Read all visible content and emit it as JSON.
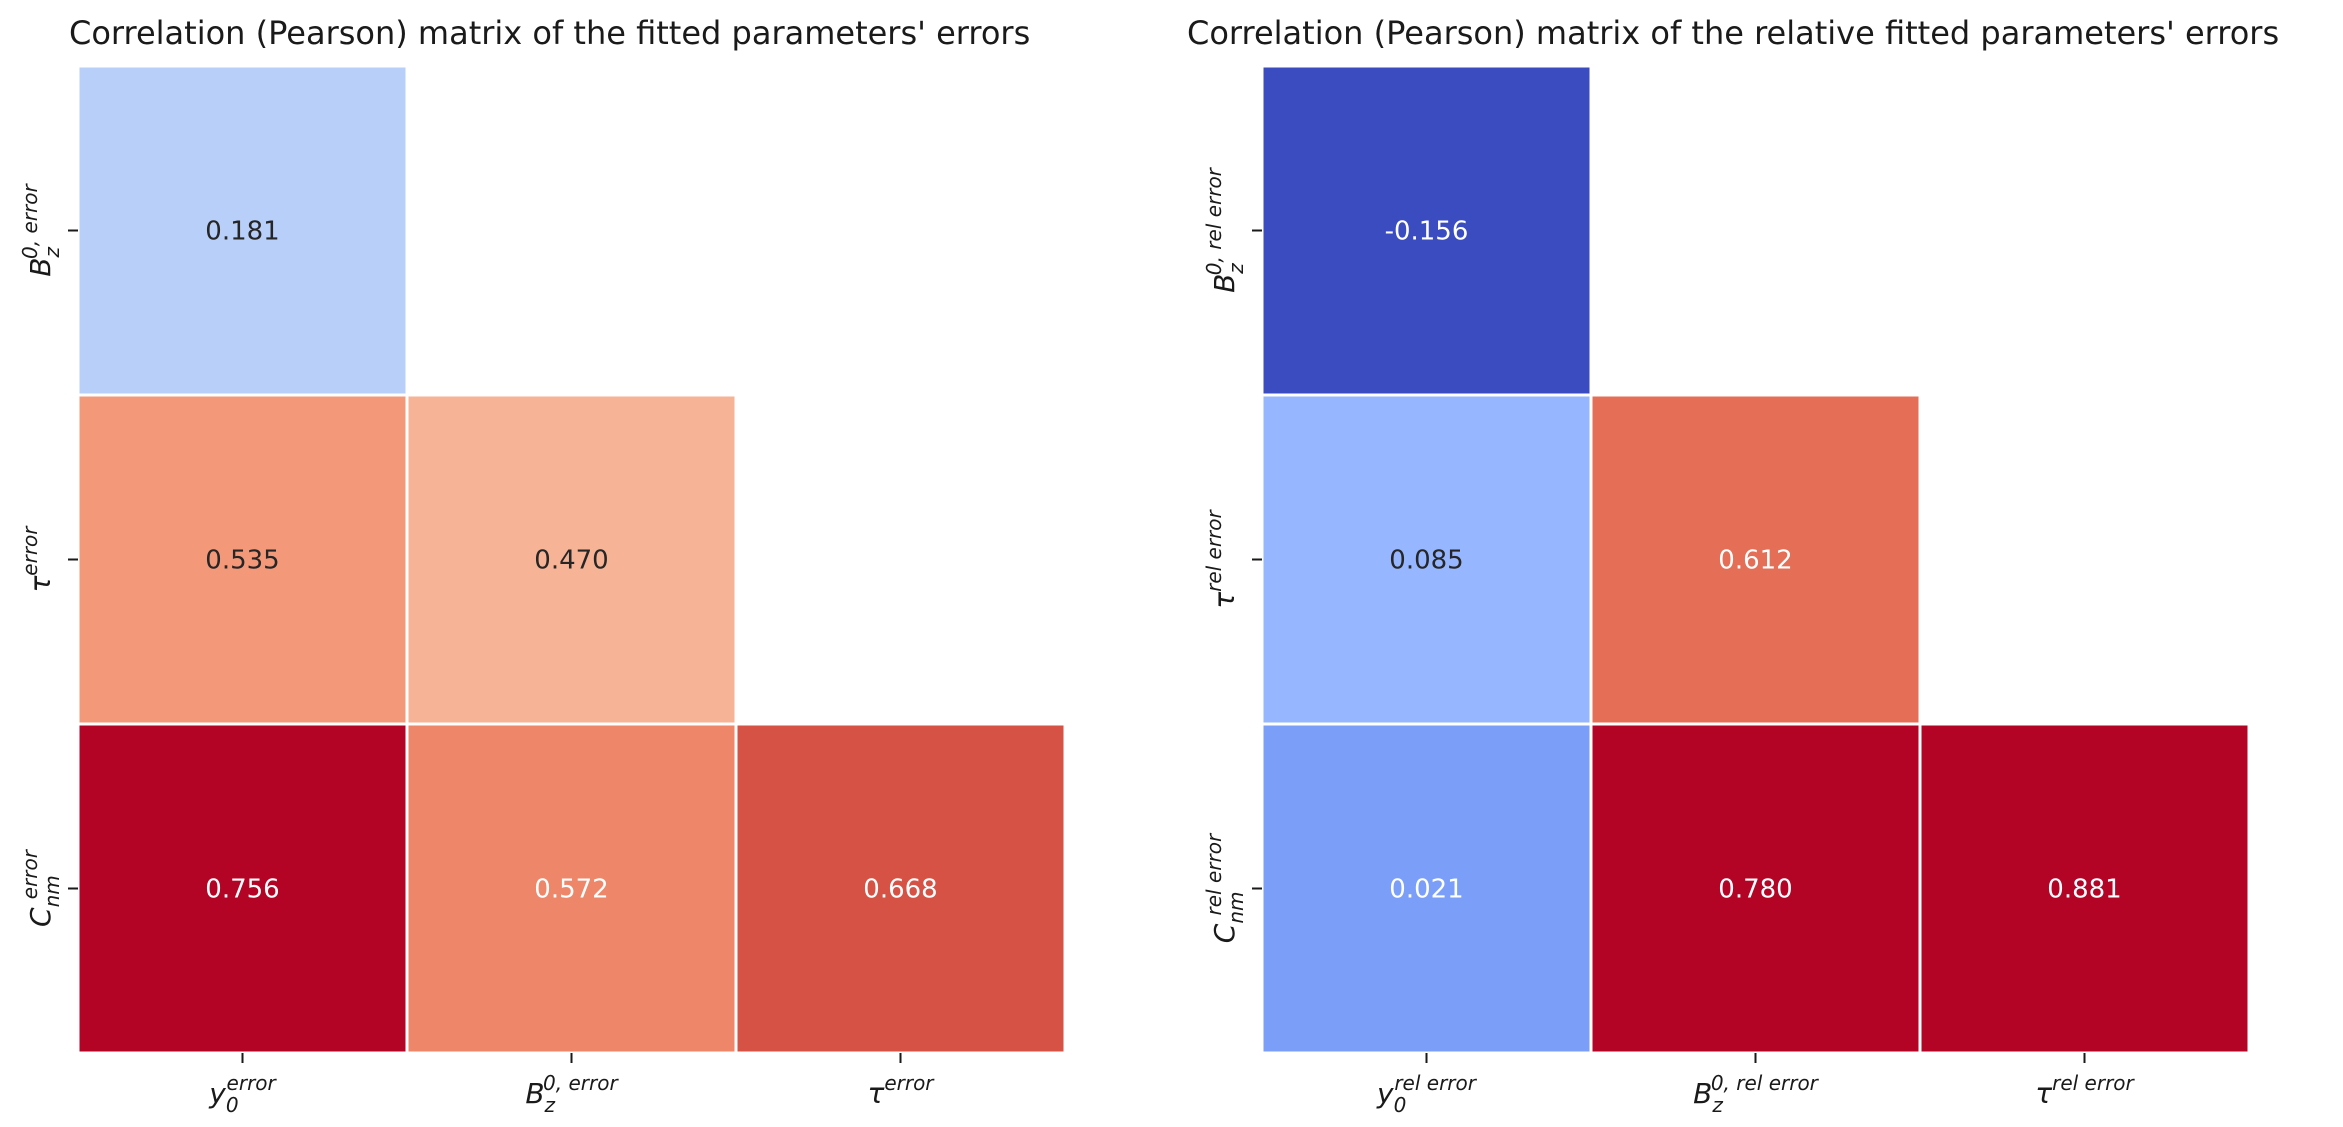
{
  "chart_data": [
    {
      "type": "heatmap",
      "title": "Correlation (Pearson) matrix of the fitted parameters' errors",
      "colormap": "coolwarm",
      "mask": "upper-triangle",
      "x_tick_labels": [
        {
          "base": "y",
          "sub": "0",
          "sup": "error"
        },
        {
          "base": "B",
          "sub": "z",
          "sup": "0, error"
        },
        {
          "base": "τ",
          "sub": "",
          "sup": "error"
        }
      ],
      "y_tick_labels": [
        {
          "base": "B",
          "sub": "z",
          "sup": "0, error"
        },
        {
          "base": "τ",
          "sub": "",
          "sup": "error"
        },
        {
          "base": "C",
          "sub": "nm",
          "sup": "error"
        }
      ],
      "cells": [
        {
          "row": 0,
          "col": 0,
          "value": 0.181,
          "label": "0.181",
          "color": "#b7cff9",
          "text_color": "#262626"
        },
        {
          "row": 1,
          "col": 0,
          "value": 0.535,
          "label": "0.535",
          "color": "#f4987a",
          "text_color": "#262626"
        },
        {
          "row": 1,
          "col": 1,
          "value": 0.47,
          "label": "0.470",
          "color": "#f6b396",
          "text_color": "#262626"
        },
        {
          "row": 2,
          "col": 0,
          "value": 0.756,
          "label": "0.756",
          "color": "#b40426",
          "text_color": "#ffffff"
        },
        {
          "row": 2,
          "col": 1,
          "value": 0.572,
          "label": "0.572",
          "color": "#ee8669",
          "text_color": "#ffffff"
        },
        {
          "row": 2,
          "col": 2,
          "value": 0.668,
          "label": "0.668",
          "color": "#d65244",
          "text_color": "#ffffff"
        }
      ]
    },
    {
      "type": "heatmap",
      "title": "Correlation (Pearson) matrix of the relative fitted parameters' errors",
      "colormap": "coolwarm",
      "mask": "upper-triangle",
      "x_tick_labels": [
        {
          "base": "y",
          "sub": "0",
          "sup": "rel error"
        },
        {
          "base": "B",
          "sub": "z",
          "sup": "0, rel error"
        },
        {
          "base": "τ",
          "sub": "",
          "sup": "rel error"
        }
      ],
      "y_tick_labels": [
        {
          "base": "B",
          "sub": "z",
          "sup": "0, rel error"
        },
        {
          "base": "τ",
          "sub": "",
          "sup": "rel error"
        },
        {
          "base": "C",
          "sub": "nm",
          "sup": "rel error"
        }
      ],
      "cells": [
        {
          "row": 0,
          "col": 0,
          "value": -0.156,
          "label": "-0.156",
          "color": "#3b4cc0",
          "text_color": "#ffffff"
        },
        {
          "row": 1,
          "col": 0,
          "value": 0.085,
          "label": "0.085",
          "color": "#96b7ff",
          "text_color": "#262626"
        },
        {
          "row": 1,
          "col": 1,
          "value": 0.612,
          "label": "0.612",
          "color": "#e46e56",
          "text_color": "#ffffff"
        },
        {
          "row": 2,
          "col": 0,
          "value": 0.021,
          "label": "0.021",
          "color": "#7b9ff9",
          "text_color": "#ffffff"
        },
        {
          "row": 2,
          "col": 1,
          "value": 0.78,
          "label": "0.780",
          "color": "#b40426",
          "text_color": "#ffffff"
        },
        {
          "row": 2,
          "col": 2,
          "value": 0.881,
          "label": "0.881",
          "color": "#b40426",
          "text_color": "#ffffff"
        }
      ]
    }
  ]
}
